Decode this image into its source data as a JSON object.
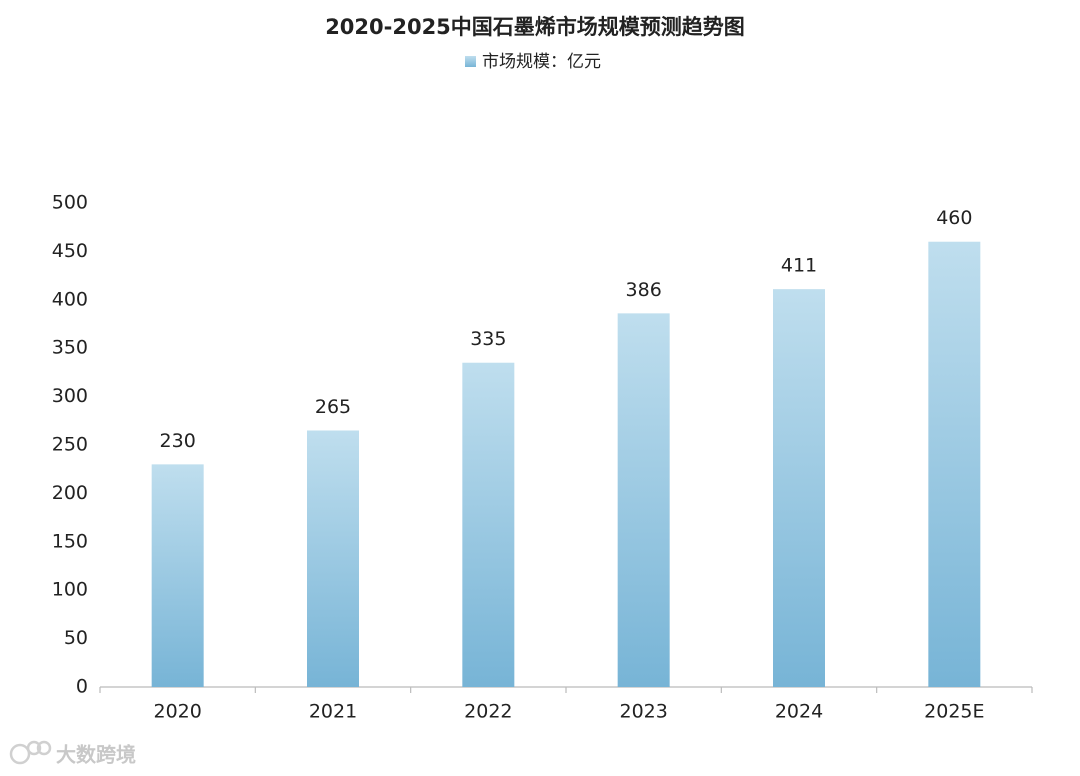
{
  "chart_data": {
    "type": "bar",
    "title": "2020-2025中国石墨烯市场规模预测趋势图",
    "categories": [
      "2020",
      "2021",
      "2022",
      "2023",
      "2024",
      "2025E"
    ],
    "series": [
      {
        "name": "市场规模：亿元",
        "color": {
          "top": "#bfdeee",
          "bottom": "#77b4d6"
        },
        "values": [
          230,
          265,
          335,
          386,
          411,
          460
        ]
      }
    ],
    "ylim": [
      0,
      500
    ],
    "yticks": [
      0,
      50,
      100,
      150,
      200,
      250,
      300,
      350,
      400,
      450,
      500
    ],
    "grid": false
  },
  "watermark": "大数跨境"
}
